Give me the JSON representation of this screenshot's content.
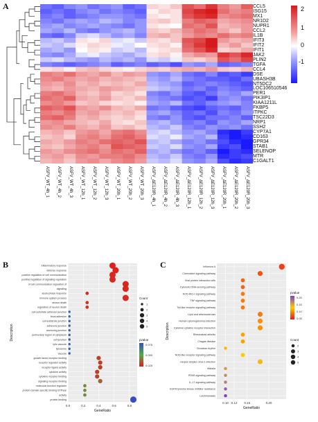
{
  "panel_a": {
    "letter": "A",
    "genes": [
      "CCL5",
      "ISG15",
      "MX1",
      "NR1D2",
      "NUPR1",
      "CCL2",
      "IL1B",
      "IFIT3",
      "IFIT2",
      "IFIT1",
      "JAK2",
      "PLIN2",
      "TGFA",
      "CCL4",
      "DSE",
      "UBASH3B",
      "NT5DC2",
      "LOC106510546",
      "PER1",
      "PIK3IP1",
      "KIAA1211L",
      "FKBP5",
      "ITPKC",
      "TSC22D3",
      "NRP1",
      "SSH2",
      "CYP7A1",
      "CD163",
      "GPR34",
      "STAB1",
      "SELENOP",
      "MTR",
      "C1GALT1"
    ],
    "samples": [
      "ASFV_WT_4h_1",
      "ASFV_WT_4h_2",
      "ASFV_WT_4h_3",
      "ASFV_WT_12h_1",
      "ASFV_WT_12h_2",
      "ASFV_WT_12h_3",
      "ASFV_WT_20h_1",
      "ASFV_WT_20h_2",
      "ASFV_WT_20h_3",
      "ASFV_ΔE120R_4h_1",
      "ASFV_ΔE120R_4h_2",
      "ASFV_ΔE120R_4h_3",
      "ASFV_ΔE120R_12h_1",
      "ASFV_ΔE120R_12h_2",
      "ASFV_ΔE120R_12h_3",
      "ASFV_ΔE120R_20h_1",
      "ASFV_ΔE120R_20h_2",
      "ASFV_ΔE120R_20h_3"
    ],
    "colorbar_ticks": [
      "2",
      "1",
      "0",
      "-1"
    ],
    "colors": {
      "high": "#d7191c",
      "mid": "#ffffff",
      "low": "#1a1aff"
    },
    "values": [
      [
        -0.8,
        -0.9,
        -0.7,
        -0.6,
        -0.8,
        -0.7,
        -0.6,
        -0.9,
        -0.8,
        0.3,
        0.2,
        0.4,
        1.2,
        1.0,
        1.4,
        0.9,
        0.7,
        1.1
      ],
      [
        -0.9,
        -0.8,
        -0.9,
        -0.7,
        -0.6,
        -0.8,
        -0.7,
        -0.8,
        -0.9,
        0.1,
        0.3,
        0.2,
        1.3,
        1.5,
        1.6,
        1.0,
        0.8,
        0.9
      ],
      [
        -0.8,
        -0.7,
        -0.9,
        -0.8,
        -0.7,
        -0.6,
        -0.6,
        -0.7,
        -0.8,
        0.2,
        0.1,
        0.2,
        1.2,
        1.4,
        1.5,
        0.8,
        0.9,
        1.0
      ],
      [
        -0.7,
        -0.8,
        -0.6,
        -0.5,
        -0.6,
        -0.4,
        -0.5,
        -0.7,
        -0.6,
        0.3,
        0.4,
        0.2,
        0.9,
        1.1,
        1.0,
        0.6,
        0.7,
        0.8
      ],
      [
        -0.6,
        -0.5,
        -0.7,
        -0.6,
        -0.5,
        -0.6,
        -0.7,
        -0.8,
        -0.6,
        0.2,
        0.1,
        0.0,
        1.0,
        0.9,
        1.2,
        0.5,
        0.6,
        0.7
      ],
      [
        -0.5,
        -0.6,
        -0.4,
        -0.7,
        -0.8,
        -0.6,
        -0.5,
        -0.4,
        -0.6,
        0.4,
        0.3,
        0.5,
        0.8,
        1.0,
        0.9,
        0.6,
        0.4,
        0.7
      ],
      [
        -0.8,
        -0.9,
        -0.7,
        -0.3,
        -0.2,
        -0.4,
        -0.6,
        -0.5,
        -0.7,
        0.5,
        0.6,
        0.4,
        0.7,
        0.9,
        0.8,
        1.0,
        0.8,
        0.9
      ],
      [
        -0.4,
        -0.3,
        -0.5,
        0.2,
        0.1,
        0.3,
        -0.2,
        -0.1,
        -0.3,
        0.3,
        0.2,
        0.4,
        1.2,
        1.3,
        1.8,
        0.7,
        0.5,
        0.6
      ],
      [
        -0.3,
        -0.4,
        -0.2,
        0.1,
        0.3,
        0.2,
        -0.1,
        -0.2,
        0.0,
        0.2,
        0.3,
        0.1,
        1.1,
        1.4,
        1.7,
        0.5,
        0.7,
        0.4
      ],
      [
        -0.5,
        -0.4,
        -0.6,
        0.0,
        0.2,
        0.1,
        -0.3,
        -0.2,
        -0.4,
        0.1,
        0.2,
        0.3,
        1.0,
        1.2,
        1.5,
        0.3,
        0.4,
        0.6
      ],
      [
        -0.6,
        -0.7,
        -0.5,
        -0.2,
        -0.1,
        -0.3,
        -0.4,
        -0.5,
        -0.3,
        0.2,
        0.3,
        0.1,
        0.6,
        0.8,
        0.7,
        1.4,
        1.2,
        1.5
      ],
      [
        -0.3,
        -0.2,
        -0.4,
        -0.5,
        -0.6,
        -0.4,
        -0.5,
        -0.4,
        -0.6,
        -0.2,
        -0.3,
        -0.1,
        0.4,
        0.3,
        0.5,
        1.2,
        1.0,
        1.3
      ],
      [
        -0.7,
        -0.8,
        -0.9,
        -0.8,
        -0.7,
        -0.6,
        -0.9,
        -0.8,
        -0.7,
        -0.9,
        -0.8,
        -1.0,
        -0.6,
        -0.7,
        -0.5,
        -0.9,
        -0.8,
        -0.7
      ],
      [
        0.2,
        0.3,
        0.1,
        0.4,
        0.5,
        0.3,
        0.2,
        0.1,
        0.3,
        0.4,
        0.3,
        0.5,
        0.6,
        0.5,
        0.7,
        0.4,
        0.3,
        0.5
      ],
      [
        0.9,
        0.8,
        1.0,
        0.7,
        0.6,
        0.8,
        0.5,
        0.7,
        0.6,
        -0.6,
        -0.7,
        -0.5,
        -0.8,
        -0.9,
        -0.7,
        -1.0,
        -0.9,
        -1.1
      ],
      [
        0.8,
        0.9,
        0.7,
        0.6,
        0.7,
        0.5,
        0.6,
        0.5,
        0.4,
        -0.5,
        -0.6,
        -0.4,
        -0.7,
        -0.8,
        -0.9,
        -0.9,
        -1.0,
        -0.8
      ],
      [
        0.7,
        0.6,
        0.8,
        0.5,
        0.6,
        0.4,
        0.5,
        0.4,
        0.6,
        -0.4,
        -0.5,
        -0.6,
        -0.9,
        -0.8,
        -0.7,
        -0.8,
        -0.9,
        -1.0
      ],
      [
        0.6,
        0.5,
        0.7,
        0.6,
        0.5,
        0.7,
        0.6,
        0.5,
        0.4,
        -0.3,
        -0.4,
        -0.5,
        -0.8,
        -0.7,
        -0.9,
        -0.7,
        -0.8,
        -0.9
      ],
      [
        0.9,
        1.0,
        0.8,
        0.5,
        0.4,
        0.6,
        0.3,
        0.4,
        0.2,
        -0.7,
        -0.8,
        -0.6,
        -0.9,
        -1.0,
        -0.8,
        -0.6,
        -0.7,
        -0.5
      ],
      [
        1.0,
        0.9,
        1.1,
        0.6,
        0.5,
        0.7,
        0.4,
        0.3,
        0.5,
        -0.6,
        -0.7,
        -0.8,
        -1.0,
        -0.9,
        -1.1,
        -0.7,
        -0.6,
        -0.8
      ],
      [
        0.8,
        0.9,
        0.7,
        0.4,
        0.5,
        0.3,
        0.2,
        0.3,
        0.1,
        -0.5,
        -0.6,
        -0.4,
        -0.8,
        -0.9,
        -0.7,
        -0.6,
        -0.5,
        -0.7
      ],
      [
        1.1,
        1.0,
        1.2,
        0.7,
        0.6,
        0.8,
        0.5,
        0.4,
        0.6,
        -0.8,
        -0.7,
        -0.9,
        -1.0,
        -1.1,
        -0.9,
        -0.8,
        -0.9,
        -0.7
      ],
      [
        0.9,
        0.8,
        1.0,
        0.6,
        0.7,
        0.5,
        0.4,
        0.5,
        0.3,
        -0.6,
        -0.5,
        -0.7,
        -0.9,
        -0.8,
        -1.0,
        -0.7,
        -0.8,
        -0.6
      ],
      [
        1.0,
        1.1,
        0.9,
        0.5,
        0.6,
        0.4,
        0.3,
        0.4,
        0.2,
        -0.7,
        -0.8,
        -0.6,
        -0.9,
        -1.0,
        -0.8,
        -0.8,
        -0.7,
        -0.9
      ],
      [
        0.7,
        0.8,
        0.6,
        0.5,
        0.4,
        0.6,
        0.3,
        0.2,
        0.4,
        -0.5,
        -0.4,
        -0.6,
        -0.8,
        -0.7,
        -0.9,
        -0.6,
        -0.7,
        -0.5
      ],
      [
        0.8,
        0.7,
        0.9,
        0.6,
        0.5,
        0.7,
        0.4,
        0.5,
        0.3,
        -0.4,
        -0.5,
        -0.3,
        -0.7,
        -0.8,
        -0.6,
        -0.7,
        -0.6,
        -0.8
      ],
      [
        0.5,
        0.6,
        0.4,
        0.7,
        0.8,
        0.6,
        0.9,
        1.0,
        0.8,
        -0.3,
        -0.2,
        -0.4,
        -0.6,
        -0.5,
        -0.7,
        -1.2,
        -1.3,
        -1.1
      ],
      [
        0.4,
        0.5,
        0.3,
        0.8,
        0.9,
        0.7,
        1.0,
        1.1,
        0.9,
        -0.2,
        -0.3,
        -0.1,
        -0.5,
        -0.6,
        -0.4,
        -1.1,
        -1.4,
        -1.2
      ],
      [
        0.6,
        0.5,
        0.7,
        0.9,
        0.8,
        1.0,
        1.1,
        1.0,
        1.2,
        -0.4,
        -0.3,
        -0.5,
        -0.7,
        -0.6,
        -0.8,
        -1.0,
        -1.2,
        -1.3
      ],
      [
        0.5,
        0.4,
        0.6,
        0.8,
        0.9,
        0.7,
        1.2,
        1.1,
        1.0,
        -0.3,
        -0.4,
        -0.2,
        -0.6,
        -0.7,
        -0.5,
        -1.1,
        -1.0,
        -1.4
      ],
      [
        0.7,
        0.6,
        0.8,
        0.9,
        1.0,
        0.8,
        1.0,
        0.9,
        1.1,
        -0.5,
        -0.4,
        -0.6,
        -0.8,
        -0.7,
        -0.9,
        -1.3,
        -1.1,
        -1.2
      ],
      [
        0.6,
        0.7,
        0.5,
        0.8,
        0.7,
        0.9,
        0.9,
        1.0,
        0.8,
        -0.4,
        -0.5,
        -0.3,
        -0.7,
        -0.8,
        -0.6,
        -1.2,
        -1.1,
        -1.0
      ],
      [
        0.5,
        0.6,
        0.4,
        0.7,
        0.8,
        0.6,
        0.8,
        0.9,
        0.7,
        -0.3,
        -0.4,
        -0.2,
        -0.6,
        -0.7,
        -0.5,
        -1.0,
        -1.2,
        -1.1
      ]
    ]
  },
  "panel_b": {
    "letter": "B",
    "xlabel": "GeneRatio",
    "ylabel": "Description",
    "xticks": [
      "0.0",
      "0.2",
      "0.4",
      "0.6",
      "0.8"
    ],
    "xlim": [
      0.0,
      0.9
    ],
    "size_legend_title": "Count",
    "size_legend_values": [
      "1",
      "2",
      "3",
      "4",
      "5"
    ],
    "color_legend_title": "pvalue",
    "color_legend_ticks": [
      "0.075",
      "0.050",
      "0.025"
    ],
    "terms": [
      {
        "label": "inflammatory response",
        "ratio": 0.58,
        "count": 5,
        "p": 0.002
      },
      {
        "label": "defense response",
        "ratio": 0.62,
        "count": 5,
        "p": 0.002
      },
      {
        "label": "positive regulation of cell communication",
        "ratio": 0.58,
        "count": 5,
        "p": 0.004
      },
      {
        "label": "positive regulation of signaling regulation",
        "ratio": 0.58,
        "count": 5,
        "p": 0.004
      },
      {
        "label": "of cell communication regulation of",
        "ratio": 0.75,
        "count": 5,
        "p": 0.003
      },
      {
        "label": "signaling",
        "ratio": 0.75,
        "count": 5,
        "p": 0.003
      },
      {
        "label": "acute-phase response",
        "ratio": 0.25,
        "count": 2,
        "p": 0.006
      },
      {
        "label": "immune system process",
        "ratio": 0.75,
        "count": 5,
        "p": 0.005
      },
      {
        "label": "neuron death",
        "ratio": 0.25,
        "count": 2,
        "p": 0.008
      },
      {
        "label": "regulation of neuron death",
        "ratio": 0.25,
        "count": 2,
        "p": 0.008
      },
      {
        "label": "cell-substrate adhesion junction",
        "ratio": 0.02,
        "count": 1,
        "p": 0.07
      },
      {
        "label": "focal adhesion",
        "ratio": 0.02,
        "count": 1,
        "p": 0.07
      },
      {
        "label": "cell-substrate junction",
        "ratio": 0.02,
        "count": 1,
        "p": 0.07
      },
      {
        "label": "adherens junction",
        "ratio": 0.02,
        "count": 1,
        "p": 0.07
      },
      {
        "label": "anchoring junction",
        "ratio": 0.02,
        "count": 1,
        "p": 0.07
      },
      {
        "label": "perinuclear region of cytoplasm",
        "ratio": 0.02,
        "count": 1,
        "p": 0.07
      },
      {
        "label": "cell junction",
        "ratio": 0.02,
        "count": 1,
        "p": 0.07
      },
      {
        "label": "lytic vacuole",
        "ratio": 0.02,
        "count": 1,
        "p": 0.07
      },
      {
        "label": "lysosome",
        "ratio": 0.02,
        "count": 1,
        "p": 0.07
      },
      {
        "label": "vacuole",
        "ratio": 0.02,
        "count": 1,
        "p": 0.07
      },
      {
        "label": "growth factor receptor binding",
        "ratio": 0.4,
        "count": 3,
        "p": 0.01
      },
      {
        "label": "receptor regulator activity",
        "ratio": 0.42,
        "count": 3,
        "p": 0.01
      },
      {
        "label": "receptor ligand activity",
        "ratio": 0.42,
        "count": 3,
        "p": 0.01
      },
      {
        "label": "cytokine activity",
        "ratio": 0.38,
        "count": 3,
        "p": 0.01
      },
      {
        "label": "cytokine receptor binding",
        "ratio": 0.38,
        "count": 3,
        "p": 0.01
      },
      {
        "label": "signaling receptor binding",
        "ratio": 0.42,
        "count": 3,
        "p": 0.02
      },
      {
        "label": "molecular function regulator",
        "ratio": 0.22,
        "count": 2,
        "p": 0.03
      },
      {
        "label": "protein domain specific binding GTPase",
        "ratio": 0.22,
        "count": 2,
        "p": 0.03
      },
      {
        "label": "activity",
        "ratio": 0.22,
        "count": 2,
        "p": 0.03
      },
      {
        "label": "protein binding",
        "ratio": 0.85,
        "count": 5,
        "p": 0.08
      }
    ]
  },
  "panel_c": {
    "letter": "C",
    "xlabel": "GeneRatio",
    "ylabel": "Description",
    "xticks": [
      "0.10",
      "0.12",
      "0.15",
      "0.20"
    ],
    "xlim": [
      0.08,
      0.24
    ],
    "size_legend_title": "Count",
    "size_legend_values": [
      "2",
      "3",
      "4",
      "5"
    ],
    "color_legend_title": "pvalue",
    "color_legend_ticks": [
      "0.20",
      "0.15",
      "0.10",
      "0.05"
    ],
    "terms": [
      {
        "label": "Influenza A",
        "ratio": 0.23,
        "count": 5,
        "p": 0.02
      },
      {
        "label": "Chemokine signaling pathway",
        "ratio": 0.18,
        "count": 4,
        "p": 0.03
      },
      {
        "label": "Viral protein interaction with",
        "ratio": 0.14,
        "count": 3,
        "p": 0.04
      },
      {
        "label": "Cytosolic DNA-sensing pathway",
        "ratio": 0.14,
        "count": 3,
        "p": 0.04
      },
      {
        "label": "NOD-RIG-I signaling pathway",
        "ratio": 0.14,
        "count": 3,
        "p": 0.05
      },
      {
        "label": "TNF signaling pathway",
        "ratio": 0.14,
        "count": 3,
        "p": 0.05
      },
      {
        "label": "Toll-like receptor signaling pathway",
        "ratio": 0.14,
        "count": 3,
        "p": 0.05
      },
      {
        "label": "Lipid and atherosclerosis",
        "ratio": 0.18,
        "count": 4,
        "p": 0.05
      },
      {
        "label": "Human cytomegalovirus infection",
        "ratio": 0.18,
        "count": 4,
        "p": 0.06
      },
      {
        "label": "Cytokine-cytokine receptor interaction",
        "ratio": 0.18,
        "count": 4,
        "p": 0.06
      },
      {
        "label": "Rheumatoid arthritis",
        "ratio": 0.14,
        "count": 3,
        "p": 0.07
      },
      {
        "label": "Chagas disease",
        "ratio": 0.14,
        "count": 3,
        "p": 0.07
      },
      {
        "label": "Circadian rhythm",
        "ratio": 0.1,
        "count": 2,
        "p": 0.08
      },
      {
        "label": "NOD-like receptor signaling pathway",
        "ratio": 0.14,
        "count": 3,
        "p": 0.09
      },
      {
        "label": "Herpes simplex virus 1 infection",
        "ratio": 0.18,
        "count": 4,
        "p": 0.1
      },
      {
        "label": "Malaria",
        "ratio": 0.1,
        "count": 2,
        "p": 0.12
      },
      {
        "label": "PPAR signaling pathway",
        "ratio": 0.1,
        "count": 2,
        "p": 0.13
      },
      {
        "label": "IL-17 signaling pathway",
        "ratio": 0.1,
        "count": 2,
        "p": 0.14
      },
      {
        "label": "EGFR tyrosine kinase inhibitor resistance",
        "ratio": 0.1,
        "count": 2,
        "p": 0.16
      },
      {
        "label": "Leishmaniasis",
        "ratio": 0.1,
        "count": 2,
        "p": 0.18
      }
    ]
  }
}
